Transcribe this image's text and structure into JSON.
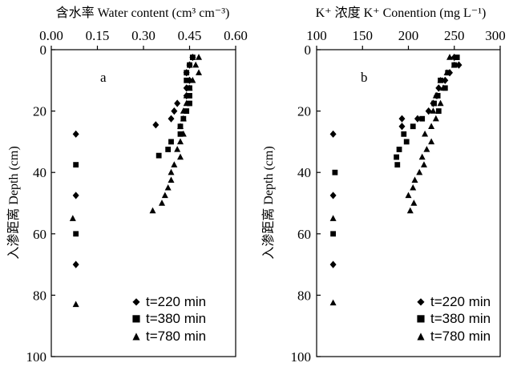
{
  "chart_data": [
    {
      "type": "scatter",
      "panel_label": "a",
      "xlabel": "含水率 Water content (cm³ cm⁻³)",
      "ylabel": "入渗距离 Depth (cm)",
      "x_axis_position": "top",
      "y_inverted": true,
      "xlim": [
        0,
        0.6
      ],
      "ylim": [
        0,
        100
      ],
      "x_ticks": [
        "0.00",
        "0.15",
        "0.30",
        "0.45",
        "0.60"
      ],
      "y_ticks": [
        "0",
        "20",
        "40",
        "60",
        "80",
        "100"
      ],
      "grid": false,
      "legend_position": "bottom-right",
      "series": [
        {
          "name": "t=220 min",
          "marker": "diamond",
          "points": [
            [
              0.46,
              2.5
            ],
            [
              0.45,
              5
            ],
            [
              0.44,
              7.5
            ],
            [
              0.45,
              10
            ],
            [
              0.44,
              12.5
            ],
            [
              0.44,
              15
            ],
            [
              0.41,
              17.5
            ],
            [
              0.4,
              20
            ],
            [
              0.39,
              22.5
            ],
            [
              0.34,
              24.5
            ],
            [
              0.08,
              27.5
            ],
            [
              0.08,
              47.5
            ],
            [
              0.08,
              70
            ]
          ]
        },
        {
          "name": "t=380 min",
          "marker": "square",
          "points": [
            [
              0.46,
              2.5
            ],
            [
              0.45,
              5
            ],
            [
              0.44,
              7.5
            ],
            [
              0.44,
              10
            ],
            [
              0.45,
              12.5
            ],
            [
              0.45,
              15
            ],
            [
              0.45,
              17.5
            ],
            [
              0.44,
              20
            ],
            [
              0.43,
              22.5
            ],
            [
              0.42,
              25
            ],
            [
              0.42,
              27.5
            ],
            [
              0.39,
              30
            ],
            [
              0.38,
              32.5
            ],
            [
              0.35,
              34.5
            ],
            [
              0.08,
              37.5
            ],
            [
              0.08,
              60
            ]
          ]
        },
        {
          "name": "t=780 min",
          "marker": "triangle",
          "points": [
            [
              0.48,
              2.5
            ],
            [
              0.47,
              5
            ],
            [
              0.48,
              7.5
            ],
            [
              0.46,
              10
            ],
            [
              0.45,
              12.5
            ],
            [
              0.44,
              15
            ],
            [
              0.44,
              17.5
            ],
            [
              0.43,
              20
            ],
            [
              0.43,
              22.5
            ],
            [
              0.42,
              25
            ],
            [
              0.43,
              27.5
            ],
            [
              0.42,
              30
            ],
            [
              0.41,
              32.5
            ],
            [
              0.42,
              35
            ],
            [
              0.4,
              37.5
            ],
            [
              0.39,
              40
            ],
            [
              0.39,
              42.5
            ],
            [
              0.38,
              45
            ],
            [
              0.37,
              47.5
            ],
            [
              0.36,
              50
            ],
            [
              0.33,
              52.5
            ],
            [
              0.07,
              55
            ],
            [
              0.08,
              83
            ]
          ]
        }
      ]
    },
    {
      "type": "scatter",
      "panel_label": "b",
      "xlabel": "K⁺ 浓度 K⁺ Conention (mg L⁻¹)",
      "ylabel": "入渗距离 Depth (cm)",
      "x_axis_position": "top",
      "y_inverted": true,
      "xlim": [
        100,
        300
      ],
      "ylim": [
        0,
        100
      ],
      "x_ticks": [
        "100",
        "150",
        "200",
        "250",
        "300"
      ],
      "y_ticks": [
        "0",
        "20",
        "40",
        "60",
        "80",
        "100"
      ],
      "grid": false,
      "legend_position": "bottom-right",
      "series": [
        {
          "name": "t=220 min",
          "marker": "diamond",
          "points": [
            [
              250,
              2.5
            ],
            [
              255,
              5
            ],
            [
              245,
              7.5
            ],
            [
              240,
              10
            ],
            [
              233,
              12.5
            ],
            [
              231,
              15
            ],
            [
              227,
              17.5
            ],
            [
              222,
              20
            ],
            [
              210,
              22.5
            ],
            [
              193,
              22.5
            ],
            [
              193,
              25
            ],
            [
              118,
              27.5
            ],
            [
              118,
              47.5
            ],
            [
              118,
              70
            ]
          ]
        },
        {
          "name": "t=380 min",
          "marker": "square",
          "points": [
            [
              253,
              2.5
            ],
            [
              250,
              5
            ],
            [
              243,
              7.5
            ],
            [
              235,
              10
            ],
            [
              240,
              12.5
            ],
            [
              232,
              15
            ],
            [
              228,
              17.5
            ],
            [
              233,
              20
            ],
            [
              215,
              22.5
            ],
            [
              205,
              25
            ],
            [
              195,
              27.5
            ],
            [
              198,
              30
            ],
            [
              190,
              32.5
            ],
            [
              187,
              35
            ],
            [
              188,
              37.5
            ],
            [
              120,
              40
            ],
            [
              118,
              60
            ]
          ]
        },
        {
          "name": "t=780 min",
          "marker": "triangle",
          "points": [
            [
              245,
              2.5
            ],
            [
              250,
              5
            ],
            [
              242,
              7.5
            ],
            [
              235,
              10
            ],
            [
              238,
              12.5
            ],
            [
              230,
              15
            ],
            [
              235,
              17.5
            ],
            [
              227,
              20
            ],
            [
              230,
              22.5
            ],
            [
              225,
              25
            ],
            [
              218,
              27.5
            ],
            [
              225,
              30
            ],
            [
              220,
              32.5
            ],
            [
              215,
              35
            ],
            [
              217,
              37.5
            ],
            [
              212,
              40
            ],
            [
              207,
              42.5
            ],
            [
              205,
              45
            ],
            [
              200,
              47.5
            ],
            [
              206,
              50
            ],
            [
              202,
              52.5
            ],
            [
              118,
              55
            ],
            [
              118,
              82.5
            ]
          ]
        }
      ]
    }
  ]
}
